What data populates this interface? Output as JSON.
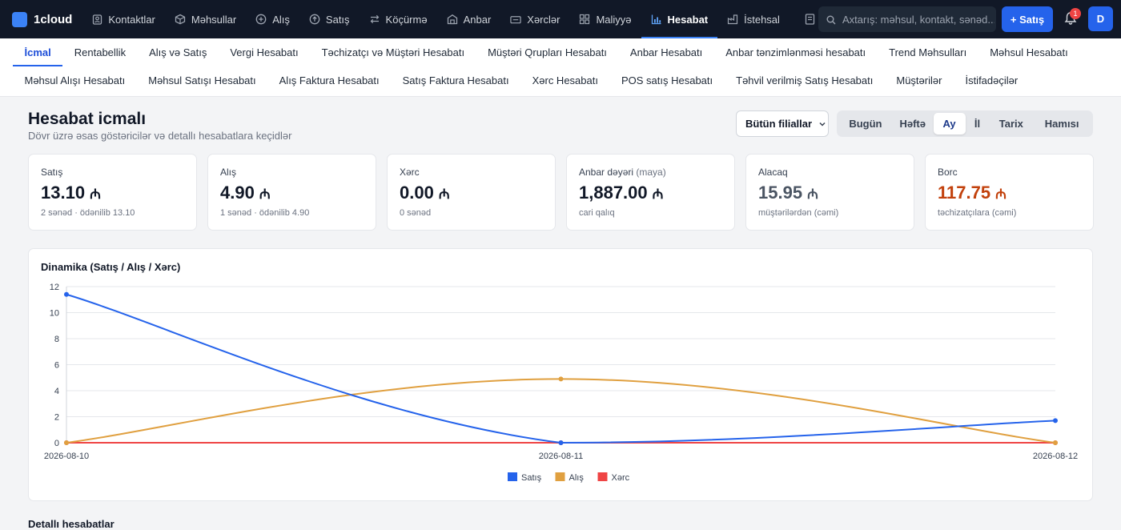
{
  "brand": {
    "name": "1cloud",
    "accent": "#3b82f6"
  },
  "nav": [
    {
      "label": "Kontaktlar",
      "icon": "contacts-icon"
    },
    {
      "label": "Məhsullar",
      "icon": "box-icon"
    },
    {
      "label": "Alış",
      "icon": "plus-circle-icon"
    },
    {
      "label": "Satış",
      "icon": "arrow-circle-icon"
    },
    {
      "label": "Köçürmə",
      "icon": "transfer-icon"
    },
    {
      "label": "Anbar",
      "icon": "warehouse-icon"
    },
    {
      "label": "Xərclər",
      "icon": "wallet-icon"
    },
    {
      "label": "Maliyyə",
      "icon": "grid-icon"
    },
    {
      "label": "Hesabat",
      "icon": "chart-icon",
      "active": true
    },
    {
      "label": "İstehsal",
      "icon": "factory-icon"
    }
  ],
  "search": {
    "placeholder": "Axtarış: məhsul, kontakt, sənəd..."
  },
  "new_sale_label": "+ Satış",
  "notifications": {
    "count": "1"
  },
  "user": {
    "initial": "D"
  },
  "subnav_row1": [
    "İcmal",
    "Rentabellik",
    "Alış və Satış",
    "Vergi Hesabatı",
    "Təchizatçı və Müştəri Hesabatı",
    "Müştəri Qrupları Hesabatı",
    "Anbar Hesabatı",
    "Anbar tənzimlənməsi hesabatı",
    "Trend Məhsulları",
    "Məhsul Hesabatı"
  ],
  "subnav_row2": [
    "Məhsul Alışı Hesabatı",
    "Məhsul Satışı Hesabatı",
    "Alış Faktura Hesabatı",
    "Satış Faktura Hesabatı",
    "Xərc Hesabatı",
    "POS satış Hesabatı",
    "Təhvil verilmiş Satış Hesabatı",
    "Müştərilər",
    "İstifadəçilər"
  ],
  "page": {
    "title": "Hesabat icmalı",
    "subtitle": "Dövr üzrə əsas göstəricilər və detallı hesabatlara keçidlər",
    "branch_select": "Bütün filiallar",
    "periods": [
      "Bugün",
      "Həftə",
      "Ay",
      "İl",
      "Tarix",
      "Hamısı"
    ],
    "active_period": "Ay",
    "details_title": "Detallı hesabatlar"
  },
  "currency_symbol": "₼",
  "cards": [
    {
      "label": "Satış",
      "label_extra": "",
      "value": "13.10",
      "meta": "2 sənəd · ödənilib 13.10",
      "tone": "normal"
    },
    {
      "label": "Alış",
      "label_extra": "",
      "value": "4.90",
      "meta": "1 sənəd · ödənilib 4.90",
      "tone": "normal"
    },
    {
      "label": "Xərc",
      "label_extra": "",
      "value": "0.00",
      "meta": "0 sənəd",
      "tone": "normal"
    },
    {
      "label": "Anbar dəyəri",
      "label_extra": "(maya)",
      "value": "1,887.00",
      "meta": "cari qalıq",
      "tone": "normal"
    },
    {
      "label": "Alacaq",
      "label_extra": "",
      "value": "15.95",
      "meta": "müştərilərdən (cəmi)",
      "tone": "gray"
    },
    {
      "label": "Borc",
      "label_extra": "",
      "value": "117.75",
      "meta": "təchizatçılara (cəmi)",
      "tone": "red"
    }
  ],
  "chart_data": {
    "type": "line",
    "title": "Dinamika (Satış / Alış / Xərc)",
    "categories": [
      "2026-08-10",
      "2026-08-11",
      "2026-08-12"
    ],
    "ylim": [
      0,
      12
    ],
    "yticks": [
      0,
      2,
      4,
      6,
      8,
      10,
      12
    ],
    "grid": true,
    "legend": "bottom",
    "series": [
      {
        "name": "Satış",
        "values": [
          11.4,
          0,
          1.7
        ],
        "color": "#2563eb"
      },
      {
        "name": "Alış",
        "values": [
          0,
          4.9,
          0
        ],
        "color": "#e0a040"
      },
      {
        "name": "Xərc",
        "values": [
          0,
          0,
          0
        ],
        "color": "#ef4444"
      }
    ]
  }
}
